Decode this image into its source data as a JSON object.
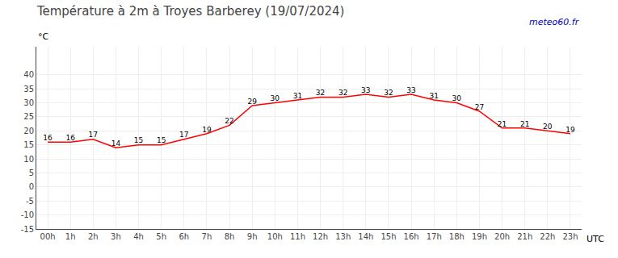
{
  "chart_data": {
    "type": "line",
    "title": "Température à 2m à Troyes Barberey (19/07/2024)",
    "ylabel": "°C",
    "xlabel": "UTC",
    "annotations": [
      "meteo60.fr"
    ],
    "x": [
      0,
      1,
      2,
      3,
      4,
      5,
      6,
      7,
      8,
      9,
      10,
      11,
      12,
      13,
      14,
      15,
      16,
      17,
      18,
      19,
      20,
      21,
      22,
      23
    ],
    "values": [
      16,
      16,
      17,
      14,
      15,
      15,
      17,
      19,
      22,
      29,
      30,
      31,
      32,
      32,
      33,
      32,
      33,
      31,
      30,
      27,
      21,
      21,
      20,
      19
    ],
    "color": "#ff0000",
    "xlim": [
      -0.5,
      23.5
    ],
    "xticks": [
      {
        "value": 0,
        "label": "00h"
      },
      {
        "value": 1,
        "label": "1h"
      },
      {
        "value": 2,
        "label": "2h"
      },
      {
        "value": 3,
        "label": "3h"
      },
      {
        "value": 4,
        "label": "4h"
      },
      {
        "value": 5,
        "label": "5h"
      },
      {
        "value": 6,
        "label": "6h"
      },
      {
        "value": 7,
        "label": "7h"
      },
      {
        "value": 8,
        "label": "8h"
      },
      {
        "value": 9,
        "label": "9h"
      },
      {
        "value": 10,
        "label": "10h"
      },
      {
        "value": 11,
        "label": "11h"
      },
      {
        "value": 12,
        "label": "12h"
      },
      {
        "value": 13,
        "label": "13h"
      },
      {
        "value": 14,
        "label": "14h"
      },
      {
        "value": 15,
        "label": "15h"
      },
      {
        "value": 16,
        "label": "16h"
      },
      {
        "value": 17,
        "label": "17h"
      },
      {
        "value": 18,
        "label": "18h"
      },
      {
        "value": 19,
        "label": "19h"
      },
      {
        "value": 20,
        "label": "20h"
      },
      {
        "value": 21,
        "label": "21h"
      },
      {
        "value": 22,
        "label": "22h"
      },
      {
        "value": 23,
        "label": "23h"
      }
    ],
    "ylim": [
      -15,
      50
    ],
    "yticks": [
      -15,
      -10,
      -5,
      0,
      5,
      10,
      15,
      20,
      25,
      30,
      35,
      40
    ],
    "grid": true,
    "data_labels": true
  }
}
